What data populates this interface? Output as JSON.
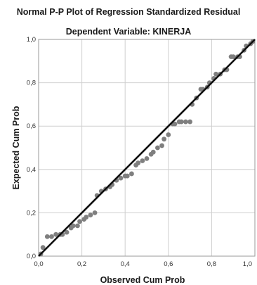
{
  "chart_data": {
    "type": "scatter",
    "title": "Normal P-P Plot of Regression Standardized Residual",
    "subtitle": "Dependent Variable: KINERJA",
    "xlabel": "Observed Cum Prob",
    "ylabel": "Expected Cum Prob",
    "xlim": [
      0,
      1
    ],
    "ylim": [
      0,
      1
    ],
    "x_ticks": [
      "0,0",
      "0,2",
      "0,4",
      "0,6",
      "0,8",
      "1,0"
    ],
    "y_ticks": [
      "0,0",
      "0,2",
      "0,4",
      "0,6",
      "0,8",
      "1,0"
    ],
    "x_tick_values": [
      0,
      0.2,
      0.4,
      0.6,
      0.8,
      1.0
    ],
    "y_tick_values": [
      0,
      0.2,
      0.4,
      0.6,
      0.8,
      1.0
    ],
    "grid": true,
    "reference_line": {
      "from": [
        0,
        0
      ],
      "to": [
        1,
        1
      ]
    },
    "points_color": "#7f7f7f",
    "line_color": "#111111",
    "grid_color": "#cfcfcf",
    "points": [
      [
        0.01,
        0.01
      ],
      [
        0.02,
        0.04
      ],
      [
        0.04,
        0.09
      ],
      [
        0.06,
        0.09
      ],
      [
        0.08,
        0.1
      ],
      [
        0.1,
        0.1
      ],
      [
        0.11,
        0.1
      ],
      [
        0.13,
        0.11
      ],
      [
        0.15,
        0.13
      ],
      [
        0.16,
        0.14
      ],
      [
        0.18,
        0.14
      ],
      [
        0.19,
        0.16
      ],
      [
        0.21,
        0.17
      ],
      [
        0.22,
        0.18
      ],
      [
        0.24,
        0.19
      ],
      [
        0.26,
        0.2
      ],
      [
        0.27,
        0.28
      ],
      [
        0.29,
        0.3
      ],
      [
        0.31,
        0.31
      ],
      [
        0.33,
        0.32
      ],
      [
        0.34,
        0.33
      ],
      [
        0.36,
        0.35
      ],
      [
        0.38,
        0.36
      ],
      [
        0.4,
        0.37
      ],
      [
        0.41,
        0.37
      ],
      [
        0.43,
        0.38
      ],
      [
        0.45,
        0.42
      ],
      [
        0.46,
        0.43
      ],
      [
        0.48,
        0.44
      ],
      [
        0.5,
        0.45
      ],
      [
        0.52,
        0.47
      ],
      [
        0.53,
        0.48
      ],
      [
        0.55,
        0.5
      ],
      [
        0.57,
        0.51
      ],
      [
        0.58,
        0.54
      ],
      [
        0.6,
        0.56
      ],
      [
        0.62,
        0.61
      ],
      [
        0.63,
        0.61
      ],
      [
        0.65,
        0.62
      ],
      [
        0.66,
        0.62
      ],
      [
        0.68,
        0.62
      ],
      [
        0.7,
        0.62
      ],
      [
        0.71,
        0.7
      ],
      [
        0.73,
        0.73
      ],
      [
        0.75,
        0.77
      ],
      [
        0.76,
        0.77
      ],
      [
        0.78,
        0.78
      ],
      [
        0.79,
        0.8
      ],
      [
        0.81,
        0.82
      ],
      [
        0.82,
        0.84
      ],
      [
        0.84,
        0.84
      ],
      [
        0.86,
        0.86
      ],
      [
        0.87,
        0.86
      ],
      [
        0.89,
        0.92
      ],
      [
        0.9,
        0.92
      ],
      [
        0.92,
        0.92
      ],
      [
        0.93,
        0.92
      ],
      [
        0.95,
        0.95
      ],
      [
        0.96,
        0.97
      ],
      [
        0.98,
        0.98
      ],
      [
        0.99,
        0.99
      ]
    ]
  }
}
